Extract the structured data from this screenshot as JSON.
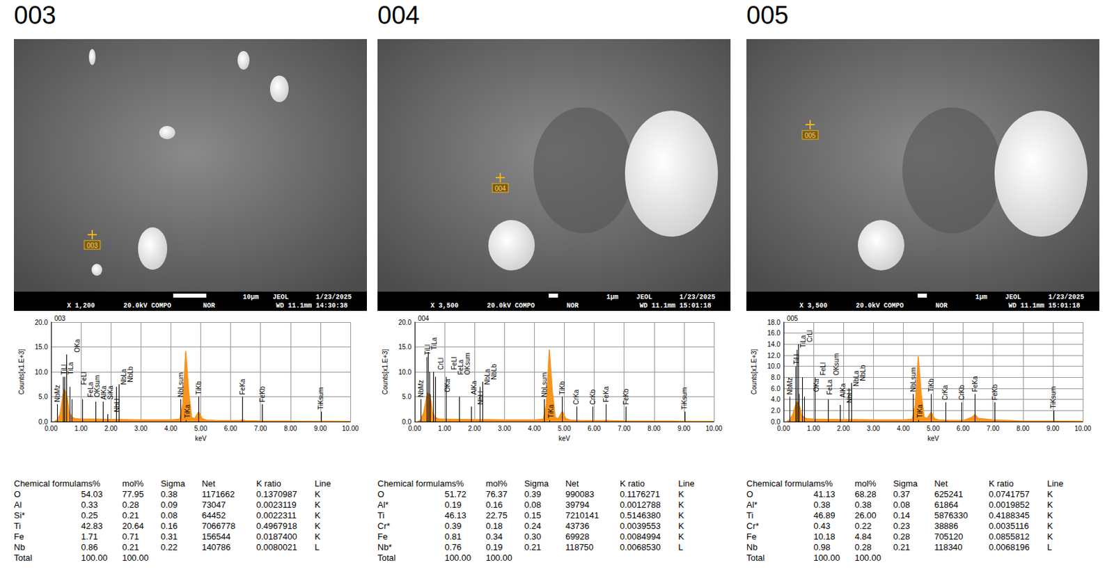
{
  "panels": [
    {
      "label": "003",
      "image": {
        "magnification": "X 1,200",
        "voltage": "20.0kV COMPO",
        "signal": "NOR",
        "wd_time": "WD 11.1mm 14:30:38",
        "scale": "10μm",
        "maker": "JEOL",
        "date": "1/23/2025",
        "point": "003"
      },
      "table": {
        "header": [
          "Chemical formula",
          "ms%",
          "mol%",
          "Sigma",
          "Net",
          "K ratio",
          "Line"
        ],
        "rows": [
          [
            "O",
            "54.03",
            "77.95",
            "0.38",
            "1171662",
            "0.1370987",
            "K"
          ],
          [
            "Al",
            "0.33",
            "0.28",
            "0.09",
            "73047",
            "0.0023119",
            "K"
          ],
          [
            "Si*",
            "0.25",
            "0.21",
            "0.08",
            "64452",
            "0.0022311",
            "K"
          ],
          [
            "Ti",
            "42.83",
            "20.64",
            "0.16",
            "7066778",
            "0.4967918",
            "K"
          ],
          [
            "Fe",
            "1.71",
            "0.71",
            "0.31",
            "156544",
            "0.0187400",
            "K"
          ],
          [
            "Nb",
            "0.86",
            "0.21",
            "0.22",
            "140786",
            "0.0080021",
            "L"
          ],
          [
            "Total",
            "100.00",
            "100.00"
          ]
        ]
      }
    },
    {
      "label": "004",
      "image": {
        "magnification": "X 3,500",
        "voltage": "20.0kV COMPO",
        "signal": "NOR",
        "wd_time": "WD 11.1mm 15:01:18",
        "scale": "1μm",
        "maker": "JEOL",
        "date": "1/23/2025",
        "point": "004"
      },
      "table": {
        "header": [
          "Chemical formula",
          "ms%",
          "mol%",
          "Sigma",
          "Net",
          "K ratio",
          "Line"
        ],
        "rows": [
          [
            "O",
            "51.72",
            "76.37",
            "0.39",
            "990083",
            "0.1176271",
            "K"
          ],
          [
            "Al*",
            "0.19",
            "0.16",
            "0.08",
            "39794",
            "0.0012788",
            "K"
          ],
          [
            "Ti",
            "46.13",
            "22.75",
            "0.15",
            "7210141",
            "0.5146380",
            "K"
          ],
          [
            "Cr*",
            "0.39",
            "0.18",
            "0.24",
            "43736",
            "0.0039553",
            "K"
          ],
          [
            "Fe",
            "0.81",
            "0.34",
            "0.30",
            "69928",
            "0.0084994",
            "K"
          ],
          [
            "Nb*",
            "0.76",
            "0.19",
            "0.21",
            "118750",
            "0.0068530",
            "L"
          ],
          [
            "Total",
            "100.00",
            "100.00"
          ]
        ]
      }
    },
    {
      "label": "005",
      "image": {
        "magnification": "X 3,500",
        "voltage": "20.0kV COMPO",
        "signal": "NOR",
        "wd_time": "WD 11.1mm 15:01:18",
        "scale": "1μm",
        "maker": "JEOL",
        "date": "1/23/2025",
        "point": "005"
      },
      "table": {
        "header": [
          "Chemical formula",
          "ms%",
          "mol%",
          "Sigma",
          "Net",
          "K ratio",
          "Line"
        ],
        "rows": [
          [
            "O",
            "41.13",
            "68.28",
            "0.37",
            "625241",
            "0.0741757",
            "K"
          ],
          [
            "Al*",
            "0.38",
            "0.38",
            "0.08",
            "61864",
            "0.0019852",
            "K"
          ],
          [
            "Ti",
            "46.89",
            "26.00",
            "0.14",
            "5876330",
            "0.4188345",
            "K"
          ],
          [
            "Cr*",
            "0.43",
            "0.22",
            "0.23",
            "38886",
            "0.0035116",
            "K"
          ],
          [
            "Fe",
            "10.18",
            "4.84",
            "0.28",
            "705120",
            "0.0855812",
            "K"
          ],
          [
            "Nb",
            "0.98",
            "0.28",
            "0.21",
            "118340",
            "0.0068196",
            "L"
          ],
          [
            "Total",
            "100.00",
            "100.00"
          ]
        ]
      }
    }
  ],
  "chart_data": [
    {
      "type": "area",
      "title": "003",
      "x_label": "keV",
      "y_label": "Counts[x1.E+3]",
      "color": "#f7941d",
      "grid": true,
      "x": [
        0.1,
        0.2,
        0.3,
        0.4,
        0.45,
        0.5,
        0.55,
        0.6,
        0.7,
        0.8,
        1.0,
        1.5,
        2.0,
        2.5,
        3.0,
        3.5,
        4.0,
        4.3,
        4.4,
        4.5,
        4.6,
        4.7,
        4.8,
        4.93,
        5.05,
        5.2,
        5.5,
        6.0,
        6.3,
        6.4,
        6.5,
        7.0,
        8.0,
        9.0,
        10.0
      ],
      "values": [
        0,
        0.3,
        1.5,
        5.5,
        6.5,
        5.8,
        4.5,
        2.0,
        0.9,
        0.6,
        0.5,
        0.5,
        0.45,
        0.4,
        0.35,
        0.35,
        0.35,
        0.5,
        3.5,
        14.2,
        6.0,
        0.8,
        0.6,
        2.0,
        0.6,
        0.3,
        0.25,
        0.2,
        0.2,
        0.35,
        0.2,
        0.15,
        0.1,
        0.08,
        0.05
      ],
      "xlim": [
        0,
        10
      ],
      "xticks": [
        {
          "value": 0,
          "label": "0.00"
        },
        {
          "value": 1,
          "label": "1.00"
        },
        {
          "value": 2,
          "label": "2.00"
        },
        {
          "value": 3,
          "label": "3.00"
        },
        {
          "value": 4,
          "label": "4.00"
        },
        {
          "value": 5,
          "label": "5.00"
        },
        {
          "value": 6,
          "label": "6.00"
        },
        {
          "value": 7,
          "label": "7.00"
        },
        {
          "value": 8,
          "label": "8.00"
        },
        {
          "value": 9,
          "label": "9.00"
        },
        {
          "value": 10,
          "label": "10.00"
        }
      ],
      "ylim": [
        0,
        20
      ],
      "yticks": [
        {
          "value": 0,
          "label": "0.0"
        },
        {
          "value": 5,
          "label": "5.0"
        },
        {
          "value": 10,
          "label": "10.0"
        },
        {
          "value": 15,
          "label": "15.0"
        },
        {
          "value": 20,
          "label": "20.0"
        }
      ],
      "annotations": [
        {
          "text": "NbMz",
          "x": 0.2,
          "y": 3.5
        },
        {
          "text": "TiLl",
          "x": 0.4,
          "y": 9
        },
        {
          "text": "TiLa",
          "x": 0.45,
          "y": 9
        },
        {
          "text": "OKa",
          "x": 0.52,
          "y": 13.5
        },
        {
          "text": "FeLl",
          "x": 0.62,
          "y": 7
        },
        {
          "text": "FeLa",
          "x": 0.7,
          "y": 4.5
        },
        {
          "text": "OKsum",
          "x": 1.05,
          "y": 4.5
        },
        {
          "text": "AlKa",
          "x": 1.49,
          "y": 4
        },
        {
          "text": "SiKa",
          "x": 1.74,
          "y": 4
        },
        {
          "text": "NbLl",
          "x": 1.9,
          "y": 1.5
        },
        {
          "text": "NbLa",
          "x": 2.17,
          "y": 7
        },
        {
          "text": "NbLb",
          "x": 2.26,
          "y": 7.5
        },
        {
          "text": "NbLsum",
          "x": 4.33,
          "y": 4.5
        },
        {
          "text": "TiKa",
          "x": 4.51,
          "y": 0.3
        },
        {
          "text": "TiKb",
          "x": 4.93,
          "y": 5
        },
        {
          "text": "FeKa",
          "x": 6.4,
          "y": 5
        },
        {
          "text": "FeKb",
          "x": 7.06,
          "y": 3.5
        },
        {
          "text": "TiKsum",
          "x": 9.02,
          "y": 2
        }
      ]
    },
    {
      "type": "area",
      "title": "004",
      "x_label": "keV",
      "y_label": "Counts[x1.E+3]",
      "color": "#f7941d",
      "grid": true,
      "x": [
        0.1,
        0.2,
        0.3,
        0.4,
        0.45,
        0.5,
        0.55,
        0.6,
        0.7,
        0.8,
        1.0,
        1.5,
        2.0,
        2.5,
        3.0,
        3.5,
        4.0,
        4.3,
        4.4,
        4.5,
        4.6,
        4.7,
        4.8,
        4.93,
        5.05,
        5.2,
        5.5,
        6.0,
        6.3,
        6.4,
        6.5,
        7.0,
        8.0,
        9.0,
        10.0
      ],
      "values": [
        0,
        0.4,
        1.8,
        5.0,
        5.8,
        5.2,
        4.0,
        1.8,
        0.8,
        0.55,
        0.5,
        0.45,
        0.4,
        0.4,
        0.35,
        0.35,
        0.35,
        0.5,
        3.6,
        14.5,
        6.2,
        0.8,
        0.6,
        2.1,
        0.6,
        0.3,
        0.25,
        0.2,
        0.2,
        0.28,
        0.2,
        0.15,
        0.1,
        0.08,
        0.05
      ],
      "xlim": [
        0,
        10
      ],
      "xticks": [
        {
          "value": 0,
          "label": "0.00"
        },
        {
          "value": 1,
          "label": "1.00"
        },
        {
          "value": 2,
          "label": "2.00"
        },
        {
          "value": 3,
          "label": "3.00"
        },
        {
          "value": 4,
          "label": "4.00"
        },
        {
          "value": 5,
          "label": "5.00"
        },
        {
          "value": 6,
          "label": "6.00"
        },
        {
          "value": 7,
          "label": "7.00"
        },
        {
          "value": 8,
          "label": "8.00"
        },
        {
          "value": 9,
          "label": "9.00"
        },
        {
          "value": 10,
          "label": "10.00"
        }
      ],
      "ylim": [
        0,
        20
      ],
      "yticks": [
        {
          "value": 0,
          "label": "0.0"
        },
        {
          "value": 5,
          "label": "5.0"
        },
        {
          "value": 10,
          "label": "10.0"
        },
        {
          "value": 15,
          "label": "15.0"
        },
        {
          "value": 20,
          "label": "20.0"
        }
      ],
      "annotations": [
        {
          "text": "NbMz",
          "x": 0.2,
          "y": 4.5
        },
        {
          "text": "TiLl",
          "x": 0.4,
          "y": 13
        },
        {
          "text": "TiLa",
          "x": 0.45,
          "y": 14
        },
        {
          "text": "CrLl",
          "x": 0.5,
          "y": 10
        },
        {
          "text": "OKa",
          "x": 0.52,
          "y": 5.5
        },
        {
          "text": "FeLl",
          "x": 0.62,
          "y": 10
        },
        {
          "text": "FeLa",
          "x": 0.7,
          "y": 9
        },
        {
          "text": "OKsum",
          "x": 1.05,
          "y": 9
        },
        {
          "text": "AlKa",
          "x": 1.49,
          "y": 5
        },
        {
          "text": "NbLl",
          "x": 1.9,
          "y": 3
        },
        {
          "text": "NbLa",
          "x": 2.17,
          "y": 7
        },
        {
          "text": "NbLb",
          "x": 2.26,
          "y": 8
        },
        {
          "text": "NbLsum",
          "x": 4.33,
          "y": 4.5
        },
        {
          "text": "TiKa",
          "x": 4.51,
          "y": 0.3
        },
        {
          "text": "TiKb",
          "x": 4.93,
          "y": 5
        },
        {
          "text": "CrKa",
          "x": 5.41,
          "y": 3
        },
        {
          "text": "CrKb",
          "x": 5.95,
          "y": 3
        },
        {
          "text": "FeKa",
          "x": 6.4,
          "y": 3.5
        },
        {
          "text": "FeKb",
          "x": 7.06,
          "y": 3
        },
        {
          "text": "TiKsum",
          "x": 9.02,
          "y": 2
        }
      ]
    },
    {
      "type": "area",
      "title": "005",
      "x_label": "keV",
      "y_label": "Counts[x1.E+3]",
      "color": "#f7941d",
      "grid": true,
      "x": [
        0.1,
        0.2,
        0.3,
        0.4,
        0.45,
        0.5,
        0.55,
        0.6,
        0.7,
        0.8,
        1.0,
        1.5,
        2.0,
        2.5,
        3.0,
        3.5,
        4.0,
        4.3,
        4.4,
        4.5,
        4.6,
        4.7,
        4.8,
        4.93,
        5.05,
        5.2,
        5.5,
        6.0,
        6.3,
        6.4,
        6.5,
        7.0,
        8.0,
        9.0,
        10.0
      ],
      "values": [
        0,
        0.3,
        1.2,
        3.0,
        3.6,
        3.2,
        2.5,
        1.2,
        0.7,
        0.5,
        0.45,
        0.4,
        0.35,
        0.35,
        0.3,
        0.3,
        0.3,
        0.45,
        3.0,
        11.8,
        5.0,
        0.8,
        0.6,
        1.7,
        0.5,
        0.3,
        0.25,
        0.2,
        0.8,
        1.3,
        0.6,
        0.3,
        0.1,
        0.08,
        0.05
      ],
      "xlim": [
        0,
        10
      ],
      "xticks": [
        {
          "value": 0,
          "label": "0.00"
        },
        {
          "value": 1,
          "label": "1.00"
        },
        {
          "value": 2,
          "label": "2.00"
        },
        {
          "value": 3,
          "label": "3.00"
        },
        {
          "value": 4,
          "label": "4.00"
        },
        {
          "value": 5,
          "label": "5.00"
        },
        {
          "value": 6,
          "label": "6.00"
        },
        {
          "value": 7,
          "label": "7.00"
        },
        {
          "value": 8,
          "label": "8.00"
        },
        {
          "value": 9,
          "label": "9.00"
        },
        {
          "value": 10,
          "label": "10.00"
        }
      ],
      "ylim": [
        0,
        18
      ],
      "yticks": [
        {
          "value": 0,
          "label": "0.0"
        },
        {
          "value": 2,
          "label": "2.0"
        },
        {
          "value": 4,
          "label": "4.0"
        },
        {
          "value": 6,
          "label": "6.0"
        },
        {
          "value": 8,
          "label": "8.0"
        },
        {
          "value": 10,
          "label": "10.0"
        },
        {
          "value": 12,
          "label": "12.0"
        },
        {
          "value": 14,
          "label": "14.0"
        },
        {
          "value": 16,
          "label": "16.0"
        },
        {
          "value": 18,
          "label": "18.0"
        }
      ],
      "annotations": [
        {
          "text": "NbMz",
          "x": 0.2,
          "y": 4.5
        },
        {
          "text": "TiLl",
          "x": 0.4,
          "y": 10
        },
        {
          "text": "TiLa",
          "x": 0.45,
          "y": 13
        },
        {
          "text": "CrLl",
          "x": 0.5,
          "y": 14
        },
        {
          "text": "OKa",
          "x": 0.52,
          "y": 5
        },
        {
          "text": "FeLl",
          "x": 0.62,
          "y": 8
        },
        {
          "text": "FeLa",
          "x": 0.7,
          "y": 4.5
        },
        {
          "text": "OKsum",
          "x": 1.05,
          "y": 8
        },
        {
          "text": "AlKa",
          "x": 1.49,
          "y": 4
        },
        {
          "text": "NbLl",
          "x": 1.9,
          "y": 3
        },
        {
          "text": "NbLa",
          "x": 2.17,
          "y": 6
        },
        {
          "text": "NbLb",
          "x": 2.26,
          "y": 7
        },
        {
          "text": "NbLsum",
          "x": 4.33,
          "y": 5
        },
        {
          "text": "TiKa",
          "x": 4.51,
          "y": 0.3
        },
        {
          "text": "TiKb",
          "x": 4.93,
          "y": 5
        },
        {
          "text": "CrKa",
          "x": 5.41,
          "y": 3.5
        },
        {
          "text": "CrKb",
          "x": 5.95,
          "y": 3.5
        },
        {
          "text": "FeKa",
          "x": 6.4,
          "y": 5
        },
        {
          "text": "FeKb",
          "x": 7.06,
          "y": 3.5
        },
        {
          "text": "TiKsum",
          "x": 9.02,
          "y": 2
        }
      ]
    }
  ]
}
